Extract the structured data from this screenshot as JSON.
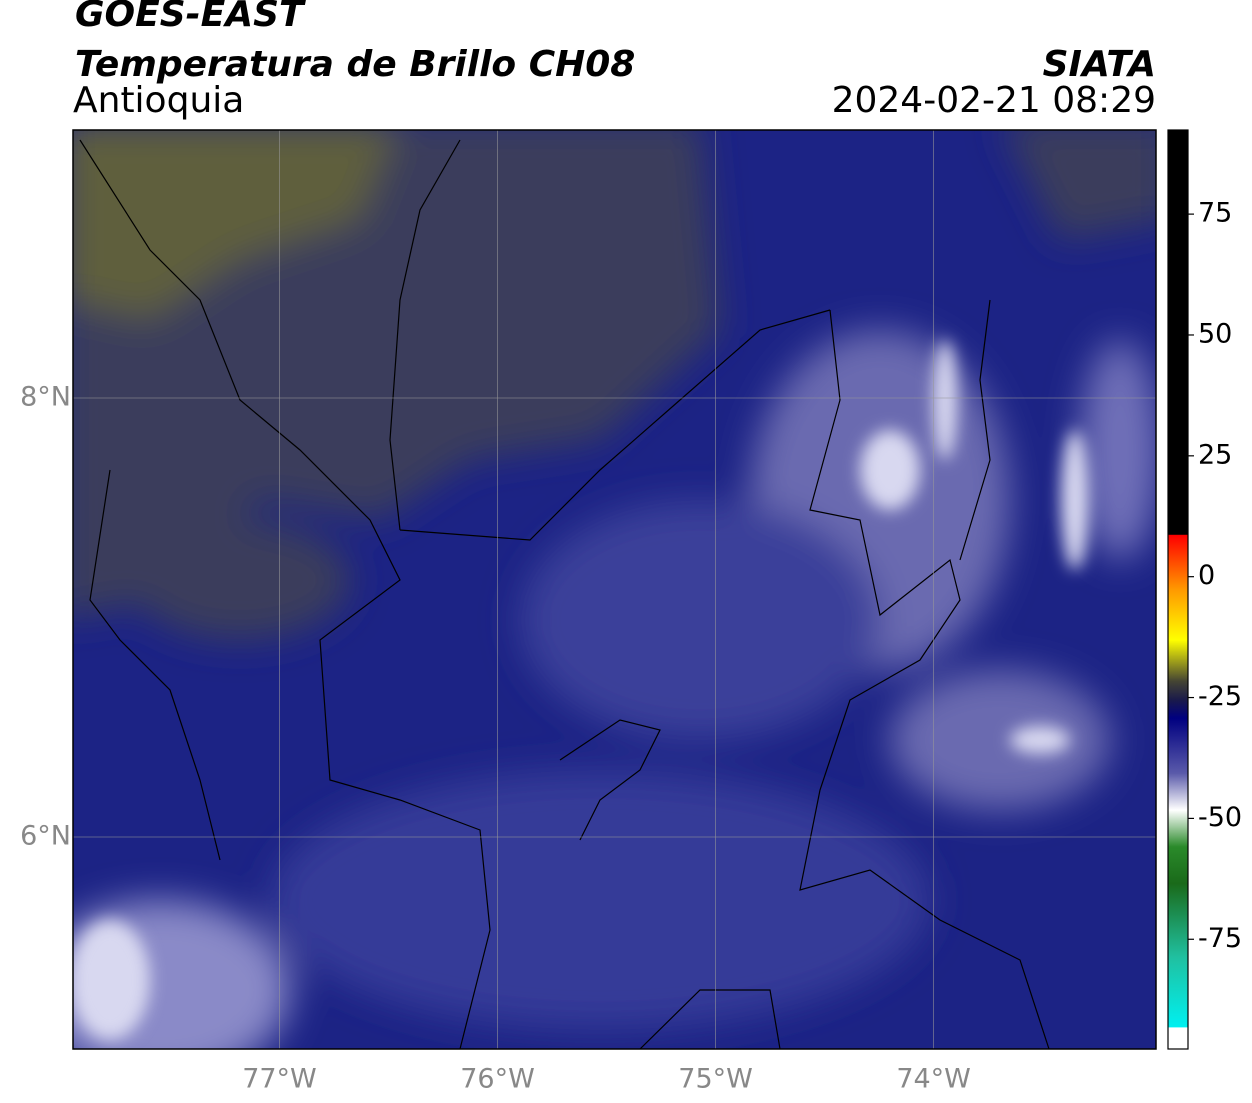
{
  "map": {
    "title": "GOES-EAST",
    "subtitle": "Temperatura de Brillo CH08",
    "region": "Antioquia",
    "source": "SIATA",
    "datetime": "2024-02-21 08:29",
    "xlim": [
      -77.947,
      -72.98
    ],
    "ylim": [
      5.034,
      9.221
    ],
    "xticks": [
      {
        "value": -77,
        "label": "77°W"
      },
      {
        "value": -76,
        "label": "76°W"
      },
      {
        "value": -75,
        "label": "75°W"
      },
      {
        "value": -74,
        "label": "74°W"
      }
    ],
    "yticks": [
      {
        "value": 6,
        "label": "6°N"
      },
      {
        "value": 8,
        "label": "8°N"
      }
    ],
    "grid": true,
    "colorbar": {
      "lim": [
        -97.7,
        92.4
      ],
      "ticks": [
        75,
        50,
        25,
        0,
        -25,
        -50,
        -75
      ]
    }
  }
}
